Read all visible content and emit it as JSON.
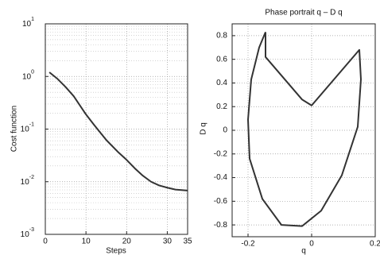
{
  "chart_data": [
    {
      "type": "line",
      "y_scale": "log",
      "ylabel": "Cost function",
      "xlabel": "Steps",
      "grid": true,
      "minor_grid": true,
      "xlim": [
        0,
        35
      ],
      "xticks": [
        0,
        10,
        20,
        30,
        35
      ],
      "ylim": [
        0.001,
        10
      ],
      "yticks": [
        {
          "value": 0.001,
          "label": "10^-3"
        },
        {
          "value": 0.01,
          "label": "10^-2"
        },
        {
          "value": 0.1,
          "label": "10^-1"
        },
        {
          "value": 1,
          "label": "10^0"
        },
        {
          "value": 10,
          "label": "10^1"
        }
      ],
      "series": [
        {
          "color": "#333333",
          "x": [
            1,
            3,
            5,
            7,
            10,
            12,
            15,
            18,
            20,
            22,
            24,
            26,
            28,
            30,
            32,
            35
          ],
          "values": [
            1.2,
            0.9,
            0.63,
            0.42,
            0.19,
            0.12,
            0.062,
            0.036,
            0.026,
            0.018,
            0.013,
            0.01,
            0.0085,
            0.0077,
            0.0071,
            0.0068
          ]
        }
      ]
    },
    {
      "type": "line",
      "title": "Phase portrait q – D q",
      "xlabel": "q",
      "ylabel": "D q",
      "grid": true,
      "xlim": [
        -0.25,
        0.2
      ],
      "xticks": [
        -0.2,
        0,
        0.2
      ],
      "ylim": [
        -0.9,
        0.9
      ],
      "yticks": [
        -0.8,
        -0.6,
        -0.4,
        -0.2,
        0,
        0.2,
        0.4,
        0.6,
        0.8
      ],
      "series": [
        {
          "color": "#333333",
          "x": [
            -0.145,
            -0.145,
            -0.03,
            0,
            0.15,
            0.155,
            0.145,
            0.095,
            0.03,
            -0.03,
            -0.095,
            -0.155,
            -0.195,
            -0.2,
            -0.19,
            -0.165,
            -0.145
          ],
          "values": [
            0.83,
            0.62,
            0.26,
            0.21,
            0.68,
            0.43,
            0.03,
            -0.38,
            -0.68,
            -0.81,
            -0.8,
            -0.58,
            -0.24,
            0.09,
            0.43,
            0.7,
            0.83
          ]
        }
      ]
    }
  ]
}
